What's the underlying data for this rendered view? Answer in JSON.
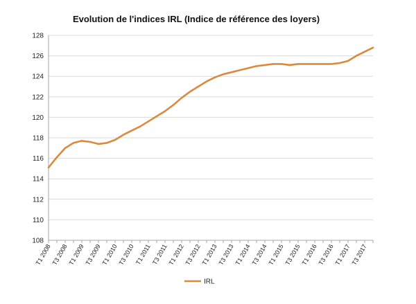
{
  "chart_data": {
    "type": "line",
    "title": "Evolution de l'indices IRL (Indice de référence des loyers)",
    "xlabel": "",
    "ylabel": "",
    "ylim": [
      108,
      128
    ],
    "yticks": [
      108,
      110,
      112,
      114,
      116,
      118,
      120,
      122,
      124,
      126,
      128
    ],
    "grid": "horizontal",
    "legend_position": "bottom",
    "x_tick_labels": [
      "T1 2008",
      "T3 2008",
      "T1 2009",
      "T3 2009",
      "T1 2010",
      "T3 2010",
      "T1 2011",
      "T3 2011",
      "T1 2012",
      "T3 2012",
      "T1 2013",
      "T3 2013",
      "T1 2014",
      "T3 2014",
      "T1 2015",
      "T3 2015",
      "T1 2016",
      "T3 2016",
      "T1 2017",
      "T3 2017"
    ],
    "categories": [
      "T1 2008",
      "T2 2008",
      "T3 2008",
      "T4 2008",
      "T1 2009",
      "T2 2009",
      "T3 2009",
      "T4 2009",
      "T1 2010",
      "T2 2010",
      "T3 2010",
      "T4 2010",
      "T1 2011",
      "T2 2011",
      "T3 2011",
      "T4 2011",
      "T1 2012",
      "T2 2012",
      "T3 2012",
      "T4 2012",
      "T1 2013",
      "T2 2013",
      "T3 2013",
      "T4 2013",
      "T1 2014",
      "T2 2014",
      "T3 2014",
      "T4 2014",
      "T1 2015",
      "T2 2015",
      "T3 2015",
      "T4 2015",
      "T1 2016",
      "T2 2016",
      "T3 2016",
      "T4 2016",
      "T1 2017",
      "T2 2017",
      "T3 2017",
      "T4 2017"
    ],
    "series": [
      {
        "name": "IRL",
        "color": "#d98a3d",
        "values": [
          115.1,
          116.1,
          117.0,
          117.5,
          117.7,
          117.6,
          117.4,
          117.5,
          117.8,
          118.3,
          118.7,
          119.1,
          119.6,
          120.1,
          120.6,
          121.2,
          121.9,
          122.5,
          123.0,
          123.5,
          123.9,
          124.2,
          124.4,
          124.6,
          124.8,
          125.0,
          125.1,
          125.2,
          125.2,
          125.1,
          125.2,
          125.2,
          125.2,
          125.2,
          125.2,
          125.3,
          125.5,
          126.0,
          126.4,
          126.8
        ]
      }
    ]
  }
}
